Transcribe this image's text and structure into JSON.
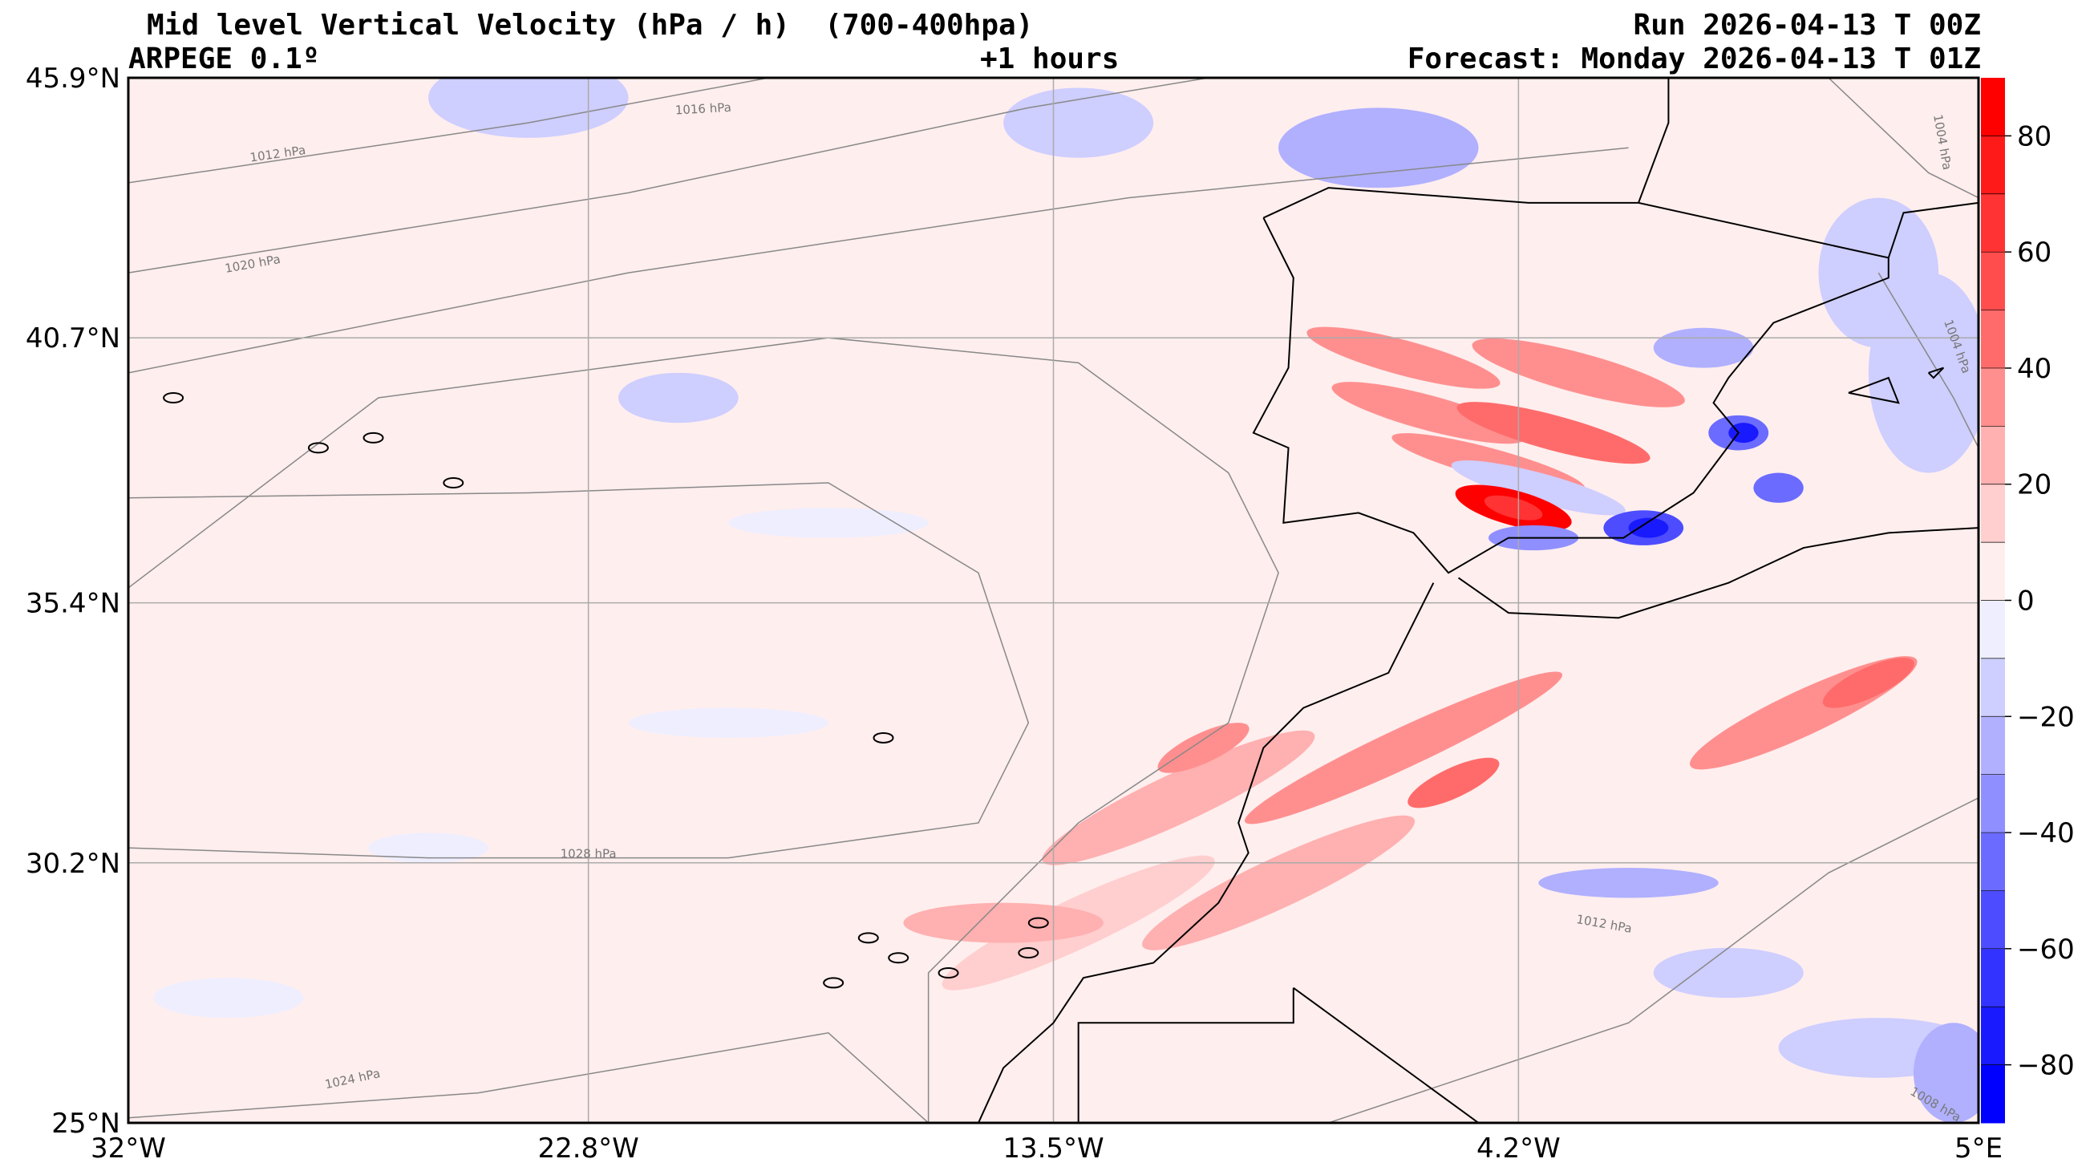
{
  "header": {
    "title": "Mid level Vertical Velocity (hPa / h)  (700-400hpa)",
    "model": "ARPEGE 0.1º",
    "lead": "+1 hours",
    "run": "Run 2026-04-13 T 00Z",
    "forecast": "Forecast: Monday 2026-04-13 T 01Z"
  },
  "chart_data": {
    "type": "heatmap",
    "title": "Mid level Vertical Velocity (hPa / h)  (700-400hpa)",
    "xlim": [
      -32,
      5
    ],
    "ylim": [
      25,
      45.9
    ],
    "x_ticks": [
      "32°W",
      "22.8°W",
      "13.5°W",
      "4.2°W",
      "5°E"
    ],
    "y_ticks": [
      "45.9°N",
      "40.7°N",
      "35.4°N",
      "30.2°N",
      "25°N"
    ],
    "grid": true,
    "colorbar": {
      "levels": [
        -90,
        -80,
        -70,
        -60,
        -50,
        -40,
        -30,
        -20,
        -10,
        0,
        10,
        20,
        30,
        40,
        50,
        60,
        70,
        80,
        90
      ],
      "tick_labels": [
        "80",
        "60",
        "40",
        "20",
        "0",
        "−20",
        "−40",
        "−60",
        "−80"
      ],
      "colors": [
        "#0000ff",
        "#1a1aff",
        "#3333ff",
        "#4d4dff",
        "#6b6bff",
        "#8f8fff",
        "#b0b0ff",
        "#ceceff",
        "#eeeeff",
        "#ffeeee",
        "#ffcece",
        "#ffb0b0",
        "#ff8f8f",
        "#ff6b6b",
        "#ff4d4d",
        "#ff3333",
        "#ff1a1a",
        "#ff0000"
      ],
      "placement": "right"
    },
    "isobar_labels": [
      "1012 hPa",
      "1016 hPa",
      "1020 hPa",
      "1024 hPa",
      "1028 hPa",
      "1012 hPa",
      "1004 hPa",
      "1004 hPa",
      "1008 hPa"
    ]
  }
}
